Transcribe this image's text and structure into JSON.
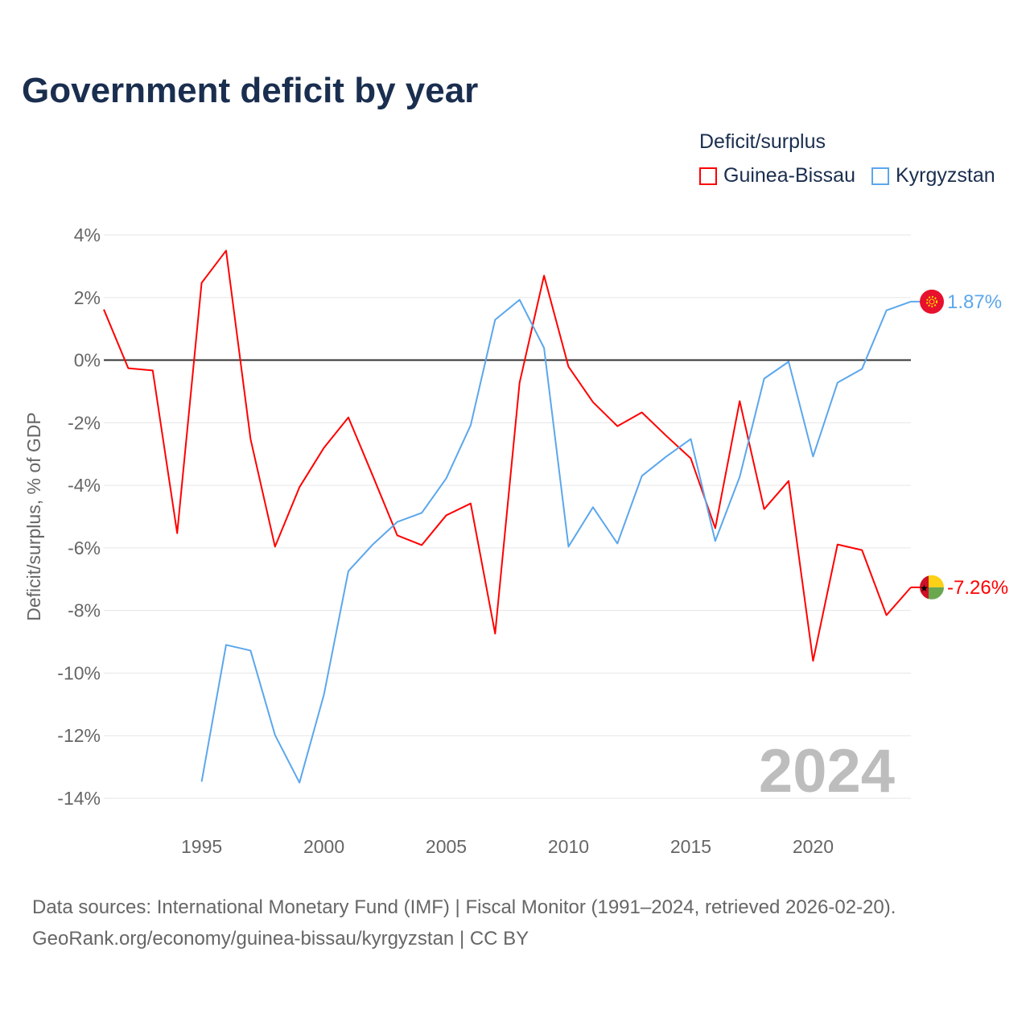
{
  "title": "Government deficit by year",
  "legend": {
    "title": "Deficit/surplus",
    "items": [
      {
        "label": "Guinea-Bissau",
        "color": "#ff0000"
      },
      {
        "label": "Kyrgyzstan",
        "color": "#5ba7ec"
      }
    ]
  },
  "watermark_year": "2024",
  "sources": {
    "line1": "Data sources: International Monetary Fund (IMF) | Fiscal Monitor (1991–2024, retrieved 2026-02-20).",
    "line2": "GeoRank.org/economy/guinea-bissau/kyrgyzstan | CC BY"
  },
  "chart_data": {
    "type": "line",
    "title": "Government deficit by year",
    "xlabel": "",
    "ylabel": "Deficit/surplus, % of GDP",
    "xlim": [
      1991,
      2024
    ],
    "ylim": [
      -14,
      4
    ],
    "x_ticks": [
      1995,
      2000,
      2005,
      2010,
      2015,
      2020
    ],
    "y_ticks": [
      4,
      2,
      0,
      -2,
      -4,
      -6,
      -8,
      -10,
      -12,
      -14
    ],
    "y_tick_labels": [
      "4%",
      "2%",
      "0%",
      "-2%",
      "-4%",
      "-6%",
      "-8%",
      "-10%",
      "-12%",
      "-14%"
    ],
    "grid": true,
    "legend_position": "top-right",
    "series": [
      {
        "name": "Guinea-Bissau",
        "color": "#ff0000",
        "end_label": "-7.26%",
        "x": [
          1991,
          1992,
          1993,
          1994,
          1995,
          1996,
          1997,
          1998,
          1999,
          2000,
          2001,
          2002,
          2003,
          2004,
          2005,
          2006,
          2007,
          2008,
          2009,
          2010,
          2011,
          2012,
          2013,
          2014,
          2015,
          2016,
          2017,
          2018,
          2019,
          2020,
          2021,
          2022,
          2023,
          2024
        ],
        "values": [
          1.62,
          -0.26,
          -0.33,
          -5.53,
          2.47,
          3.5,
          -2.52,
          -5.96,
          -4.06,
          -2.8,
          -1.83,
          -3.7,
          -5.6,
          -5.91,
          -4.96,
          -4.58,
          -8.74,
          -0.72,
          2.7,
          -0.21,
          -1.34,
          -2.11,
          -1.67,
          -2.42,
          -3.14,
          -5.37,
          -1.31,
          -4.76,
          -3.86,
          -9.61,
          -5.89,
          -6.07,
          -8.15,
          -7.26
        ]
      },
      {
        "name": "Kyrgyzstan",
        "color": "#5ba7ec",
        "end_label": "1.87%",
        "x": [
          1995,
          1996,
          1997,
          1998,
          1999,
          2000,
          2001,
          2002,
          2003,
          2004,
          2005,
          2006,
          2007,
          2008,
          2009,
          2010,
          2011,
          2012,
          2013,
          2014,
          2015,
          2016,
          2017,
          2018,
          2019,
          2020,
          2021,
          2022,
          2023,
          2024
        ],
        "values": [
          -13.47,
          -9.1,
          -9.28,
          -11.98,
          -13.5,
          -10.69,
          -6.74,
          -5.89,
          -5.17,
          -4.88,
          -3.78,
          -2.08,
          1.29,
          1.93,
          0.39,
          -5.96,
          -4.7,
          -5.86,
          -3.7,
          -3.08,
          -2.52,
          -5.78,
          -3.73,
          -0.59,
          -0.05,
          -3.08,
          -0.72,
          -0.28,
          1.59,
          1.87
        ]
      }
    ]
  }
}
